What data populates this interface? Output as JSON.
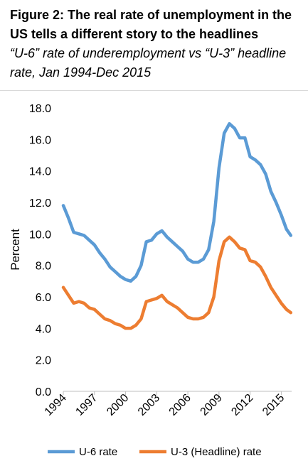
{
  "header": {
    "title": "Figure 2: The real rate of unemployment in the US tells a different story to the headlines",
    "subtitle": "“U-6” rate of underemployment vs “U-3” headline rate, Jan 1994-Dec 2015"
  },
  "chart_data": {
    "type": "line",
    "ylabel": "Percent",
    "xlabel": "",
    "ylim": [
      0,
      18
    ],
    "xlim": [
      1994,
      2016
    ],
    "yticks": [
      "0.0",
      "2.0",
      "4.0",
      "6.0",
      "8.0",
      "10.0",
      "12.0",
      "14.0",
      "16.0",
      "18.0"
    ],
    "xticks": [
      "1994",
      "1997",
      "2000",
      "2003",
      "2006",
      "2009",
      "2012",
      "2015"
    ],
    "grid": false,
    "legend_position": "bottom",
    "x": [
      1994.0,
      1994.5,
      1995.0,
      1995.5,
      1996.0,
      1996.5,
      1997.0,
      1997.5,
      1998.0,
      1998.5,
      1999.0,
      1999.5,
      2000.0,
      2000.5,
      2001.0,
      2001.5,
      2002.0,
      2002.5,
      2003.0,
      2003.5,
      2004.0,
      2004.5,
      2005.0,
      2005.5,
      2006.0,
      2006.5,
      2007.0,
      2007.5,
      2008.0,
      2008.5,
      2009.0,
      2009.5,
      2010.0,
      2010.5,
      2011.0,
      2011.5,
      2012.0,
      2012.5,
      2013.0,
      2013.5,
      2014.0,
      2014.5,
      2015.0,
      2015.5,
      2015.92
    ],
    "series": [
      {
        "name": "U-6 rate",
        "color": "#5b9bd5",
        "values": [
          11.8,
          11.0,
          10.1,
          10.0,
          9.9,
          9.6,
          9.3,
          8.8,
          8.4,
          7.9,
          7.6,
          7.3,
          7.1,
          7.0,
          7.3,
          8.0,
          9.5,
          9.6,
          10.0,
          10.2,
          9.8,
          9.5,
          9.2,
          8.9,
          8.4,
          8.2,
          8.2,
          8.4,
          9.0,
          10.8,
          14.2,
          16.4,
          17.0,
          16.7,
          16.1,
          16.1,
          14.9,
          14.7,
          14.4,
          13.8,
          12.7,
          12.0,
          11.2,
          10.3,
          9.9
        ]
      },
      {
        "name": "U-3 (Headline) rate",
        "color": "#ed7d31",
        "values": [
          6.6,
          6.1,
          5.6,
          5.7,
          5.6,
          5.3,
          5.2,
          4.9,
          4.6,
          4.5,
          4.3,
          4.2,
          4.0,
          4.0,
          4.2,
          4.6,
          5.7,
          5.8,
          5.9,
          6.1,
          5.7,
          5.5,
          5.3,
          5.0,
          4.7,
          4.6,
          4.6,
          4.7,
          5.0,
          6.0,
          8.3,
          9.5,
          9.8,
          9.5,
          9.1,
          9.0,
          8.3,
          8.2,
          7.9,
          7.3,
          6.6,
          6.1,
          5.6,
          5.2,
          5.0
        ]
      }
    ]
  }
}
